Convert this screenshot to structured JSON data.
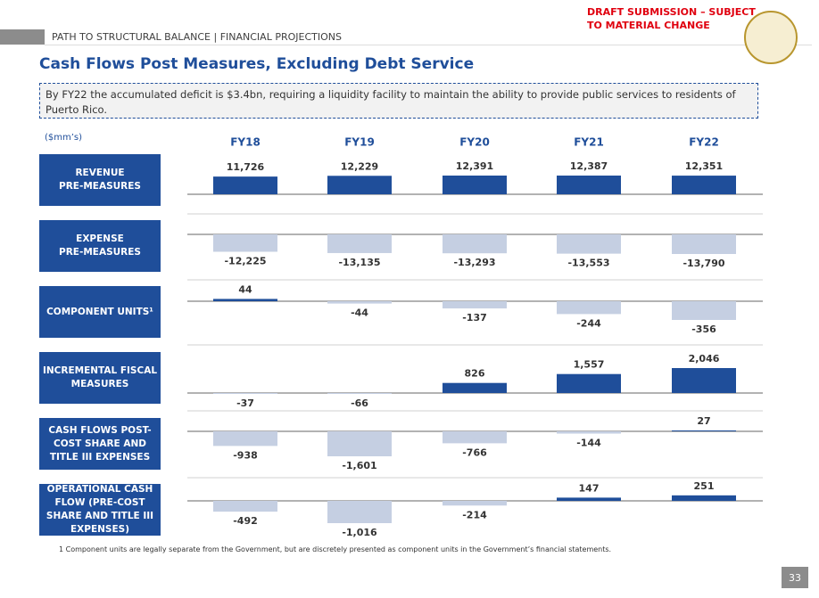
{
  "header": {
    "draft_note": "DRAFT SUBMISSION – SUBJECT\nTO MATERIAL CHANGE",
    "section": "PATH TO STRUCTURAL BALANCE | FINANCIAL PROJECTIONS",
    "title": "Cash Flows Post Measures, Excluding Debt Service",
    "callout": "By FY22 the accumulated deficit is $3.4bn, requiring a liquidity facility to maintain the ability to provide public services to residents of Puerto Rico."
  },
  "chart_data": {
    "type": "bar",
    "unit_label": "($mm’s)",
    "categories": [
      "FY18",
      "FY19",
      "FY20",
      "FY21",
      "FY22"
    ],
    "positive_color": "#1f4e9a",
    "negative_color": "#c5cfe2",
    "series": [
      {
        "name": "REVENUE\nPRE-MEASURES",
        "values": [
          11726,
          12229,
          12391,
          12387,
          12351
        ],
        "value_labels": [
          "11,726",
          "12,229",
          "12,391",
          "12,387",
          "12,351"
        ]
      },
      {
        "name": "EXPENSE\nPRE-MEASURES",
        "values": [
          -12225,
          -13135,
          -13293,
          -13553,
          -13790
        ],
        "value_labels": [
          "-12,225",
          "-13,135",
          "-13,293",
          "-13,553",
          "-13,790"
        ]
      },
      {
        "name": "COMPONENT UNITS¹",
        "values": [
          44,
          -44,
          -137,
          -244,
          -356
        ],
        "value_labels": [
          "44",
          "-44",
          "-137",
          "-244",
          "-356"
        ]
      },
      {
        "name": "INCREMENTAL FISCAL\nMEASURES",
        "values": [
          -37,
          -66,
          826,
          1557,
          2046
        ],
        "value_labels": [
          "-37",
          "-66",
          "826",
          "1,557",
          "2,046"
        ]
      },
      {
        "name": "CASH FLOWS POST-\nCOST SHARE AND\nTITLE III EXPENSES",
        "values": [
          -938,
          -1601,
          -766,
          -144,
          27
        ],
        "value_labels": [
          "-938",
          "-1,601",
          "-766",
          "-144",
          "27"
        ]
      },
      {
        "name": "OPERATIONAL CASH\nFLOW (PRE-COST\nSHARE AND TITLE III\nEXPENSES)",
        "values": [
          -492,
          -1016,
          -214,
          147,
          251
        ],
        "value_labels": [
          "-492",
          "-1,016",
          "-214",
          "147",
          "251"
        ]
      }
    ]
  },
  "footnote": "1 Component units are legally separate from the Government, but are discretely presented as component units in the Government’s financial statements.",
  "page_number": "33"
}
